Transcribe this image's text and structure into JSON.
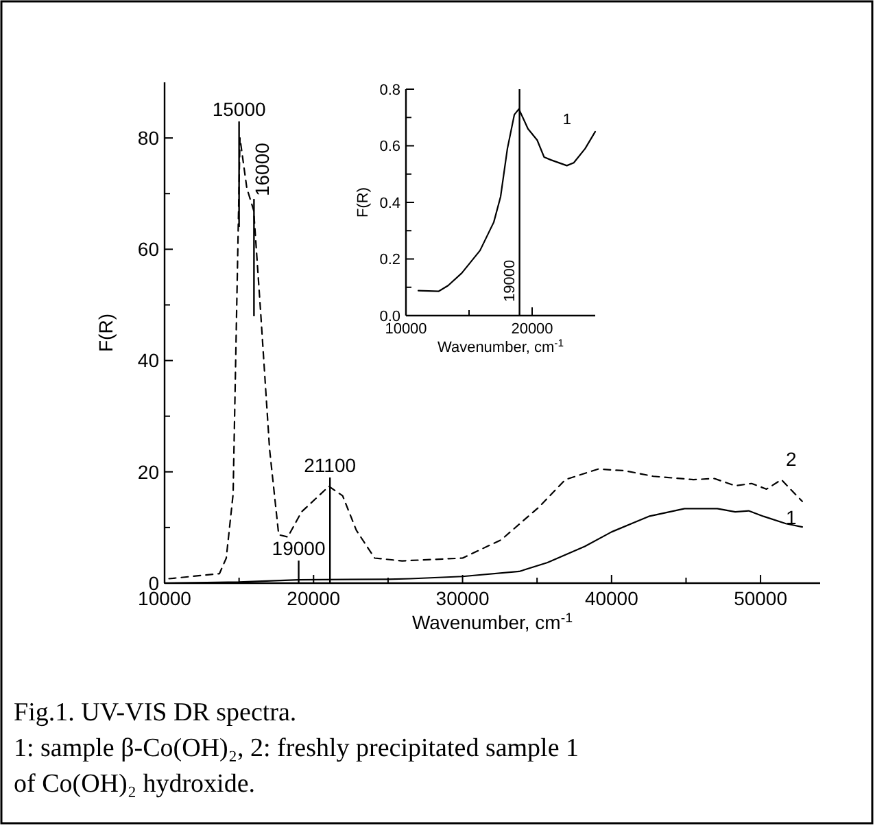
{
  "chart_data": [
    {
      "type": "line",
      "xlabel": "Wavenumber, cm$^{-1}$",
      "ylabel": "F(R)",
      "xlim": [
        10000,
        54000
      ],
      "ylim": [
        0,
        90
      ],
      "xticks": [
        10000,
        {
          "value": 15000,
          "label": null
        },
        20000,
        {
          "value": 25000,
          "label": null
        },
        30000,
        {
          "value": 35000,
          "label": null
        },
        40000,
        {
          "value": 45000,
          "label": null
        },
        50000
      ],
      "yticks": [
        0,
        {
          "value": 10,
          "label": null
        },
        20,
        {
          "value": 30,
          "label": null
        },
        40,
        {
          "value": 50,
          "label": null
        },
        60,
        {
          "value": 70,
          "label": null
        },
        80
      ],
      "marker": "none",
      "grid": false,
      "series": [
        {
          "name": "1",
          "color": "#000000",
          "line_style": "solid",
          "x": [
            10000,
            15000,
            19000,
            25000,
            26500,
            30000,
            33800,
            35700,
            38200,
            40000,
            42500,
            44900,
            47100,
            48300,
            49200,
            50200,
            51700,
            52800
          ],
          "values": [
            0,
            0.2,
            0.6,
            0.7,
            0.8,
            1.2,
            2.1,
            3.7,
            6.6,
            9.2,
            12,
            13.4,
            13.4,
            12.8,
            13,
            12,
            10.7,
            10.1
          ]
        },
        {
          "name": "2",
          "color": "#000000",
          "line_style": "dashed",
          "x": [
            10300,
            13680,
            14140,
            14600,
            15060,
            15520,
            15980,
            16440,
            17050,
            17660,
            18270,
            19190,
            21030,
            21950,
            22870,
            24100,
            25940,
            30000,
            32600,
            35100,
            36900,
            39100,
            40900,
            42800,
            45500,
            46900,
            48300,
            49400,
            50400,
            51400,
            52000,
            52800
          ],
          "values": [
            0.8,
            1.7,
            4.5,
            16,
            80,
            71,
            67,
            49,
            24,
            8.7,
            8.3,
            12.8,
            17.4,
            15.7,
            9.5,
            4.5,
            4,
            4.5,
            7.8,
            13.6,
            18.6,
            20.5,
            20.2,
            19.2,
            18.6,
            18.8,
            17.5,
            17.9,
            16.9,
            18.6,
            16.9,
            14.7
          ]
        }
      ],
      "ref_lines": [
        {
          "axis": "x",
          "value": 15000,
          "label": "15000"
        },
        {
          "axis": "x",
          "value": 16000,
          "label": "16000"
        },
        {
          "axis": "x",
          "value": 21100,
          "label": "21100"
        },
        {
          "axis": "x",
          "value": 19000,
          "label": "19000"
        }
      ],
      "annotations": [
        "Fig.1. UV-VIS DR spectra.",
        "1: sample β-Co(OH)₂, 2: freshly precipitated sample 1",
        "of Co(OH)₂ hydroxide."
      ]
    },
    {
      "type": "line",
      "xlabel": "Wavenumber, cm$^{-1}$",
      "ylabel": "F(R)",
      "xlim": [
        10000,
        25000
      ],
      "ylim": [
        0,
        0.8
      ],
      "xticks": [
        10000,
        {
          "value": 15000,
          "label": null
        },
        20000
      ],
      "yticks": [
        {
          "value": 0,
          "label": "0.0"
        },
        {
          "value": 0.1,
          "label": null
        },
        0.2,
        {
          "value": 0.3,
          "label": null
        },
        0.4,
        {
          "value": 0.5,
          "label": null
        },
        0.6,
        {
          "value": 0.7,
          "label": null
        },
        0.8
      ],
      "marker": "none",
      "grid": false,
      "series": [
        {
          "name": "1",
          "color": "#000000",
          "line_style": "solid",
          "x": [
            10980,
            12600,
            13340,
            14420,
            15870,
            16960,
            17500,
            18040,
            18590,
            18950,
            19670,
            20400,
            20950,
            21490,
            22750,
            23300,
            24200,
            25000
          ],
          "values": [
            0.088,
            0.086,
            0.106,
            0.15,
            0.23,
            0.33,
            0.42,
            0.59,
            0.71,
            0.73,
            0.66,
            0.62,
            0.56,
            0.55,
            0.53,
            0.54,
            0.59,
            0.65
          ]
        }
      ],
      "ref_lines": [
        {
          "axis": "x",
          "value": 19000,
          "label": "19000"
        }
      ]
    }
  ]
}
